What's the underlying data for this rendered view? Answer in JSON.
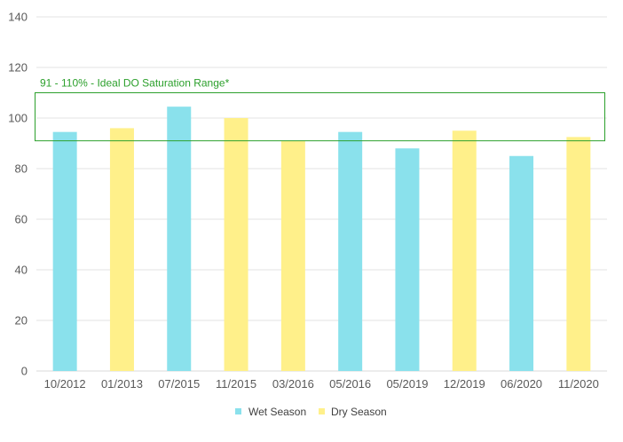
{
  "chart_data": {
    "type": "bar",
    "title": "",
    "xlabel": "",
    "ylabel": "",
    "ylim": [
      0,
      140
    ],
    "yticks": [
      0,
      20,
      40,
      60,
      80,
      100,
      120,
      140
    ],
    "grid": true,
    "legend_position": "bottom-center",
    "categories": [
      "10/2012",
      "01/2013",
      "07/2015",
      "11/2015",
      "03/2016",
      "05/2016",
      "05/2019",
      "12/2019",
      "06/2020",
      "11/2020"
    ],
    "values": [
      94.5,
      96,
      104.5,
      100,
      91,
      94.5,
      88,
      95,
      85,
      92.5
    ],
    "bar_series": [
      "Wet Season",
      "Dry Season",
      "Wet Season",
      "Dry Season",
      "Dry Season",
      "Wet Season",
      "Wet Season",
      "Dry Season",
      "Wet Season",
      "Dry Season"
    ],
    "series": [
      {
        "name": "Wet Season",
        "color": "#8AE1EC"
      },
      {
        "name": "Dry Season",
        "color": "#FFF08A"
      }
    ],
    "annotation": {
      "text": "91 - 110% - Ideal DO Saturation Range*",
      "range": [
        91,
        110
      ],
      "color": "#2CA02C"
    }
  }
}
